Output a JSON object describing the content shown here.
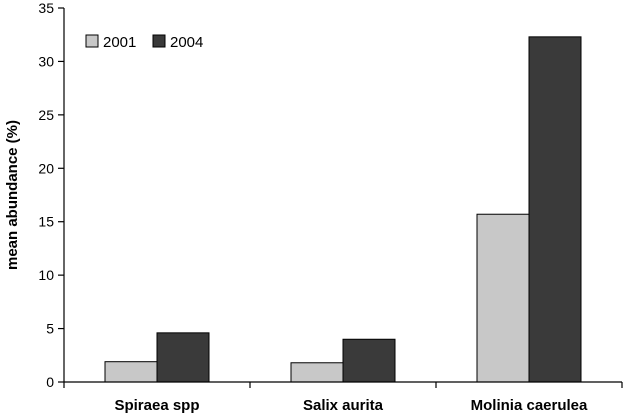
{
  "chart_data": {
    "type": "bar",
    "categories": [
      "Spiraea spp",
      "Salix aurita",
      "Molinia caerulea"
    ],
    "series": [
      {
        "name": "2001",
        "values": [
          1.9,
          1.8,
          15.7
        ],
        "color": "#c8c8c8"
      },
      {
        "name": "2004",
        "values": [
          4.6,
          4.0,
          32.3
        ],
        "color": "#3a3a3a"
      }
    ],
    "ylabel": "mean abundance (%)",
    "ylim": [
      0,
      35
    ],
    "yticks": [
      0,
      5,
      10,
      15,
      20,
      25,
      30,
      35
    ],
    "grid": false,
    "legend_position": "top-left"
  }
}
